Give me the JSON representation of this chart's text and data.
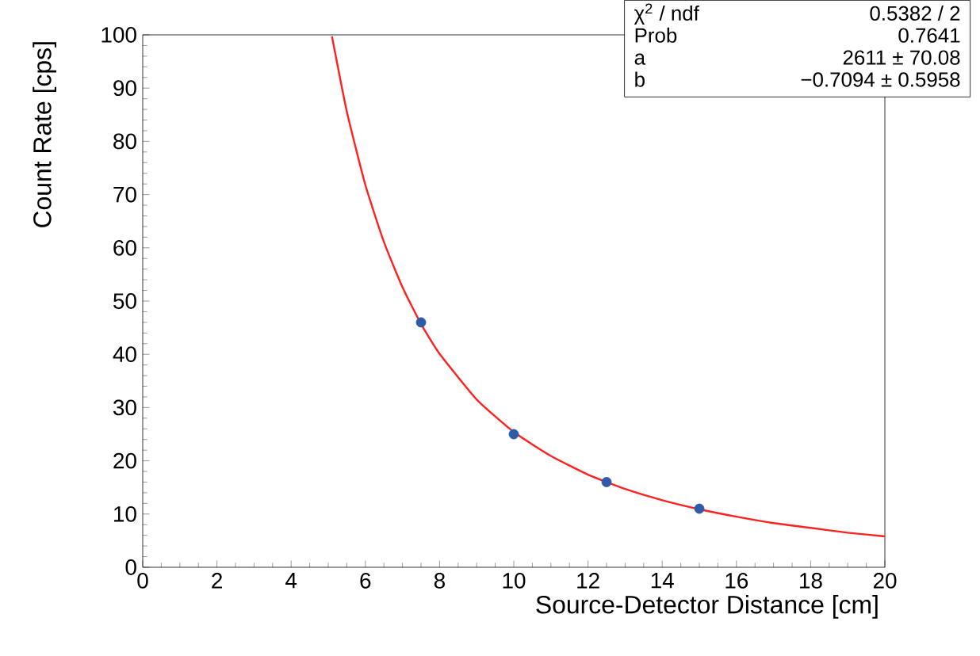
{
  "chart_data": {
    "type": "scatter",
    "xlabel": "Source-Detector Distance [cm]",
    "ylabel": "Count Rate [cps]",
    "xlim": [
      0,
      20
    ],
    "xticks": [
      0,
      2,
      4,
      6,
      8,
      10,
      12,
      14,
      16,
      18,
      20
    ],
    "ylim": [
      0,
      100
    ],
    "yticks": [
      0,
      10,
      20,
      30,
      40,
      50,
      60,
      70,
      80,
      90,
      100
    ],
    "series": [
      {
        "color": "#2e5aa8",
        "marker": "circle",
        "x": [
          7.5,
          10,
          12.5,
          15
        ],
        "values": [
          46,
          25,
          16,
          11
        ]
      },
      {
        "type": "line",
        "color": "#ff2020",
        "marker": "none",
        "x": [
          5.1,
          5.5,
          6,
          6.5,
          7,
          7.5,
          8,
          9,
          10,
          11,
          12,
          13,
          14,
          15,
          16,
          17,
          18,
          19,
          20
        ],
        "values": [
          99.7,
          85.6,
          71.8,
          61.1,
          52.6,
          45.7,
          40.1,
          31.5,
          25.4,
          20.9,
          17.4,
          14.7,
          12.6,
          10.9,
          9.5,
          8.3,
          7.4,
          6.5,
          5.8
        ]
      }
    ],
    "annotations": [
      "χ$^{2}$ / ndf",
      "0.5382 / 2",
      "Prob",
      "0.7641",
      "a",
      "2611 ± 70.08",
      "b",
      "−0.7094 ± 0.5958"
    ]
  }
}
